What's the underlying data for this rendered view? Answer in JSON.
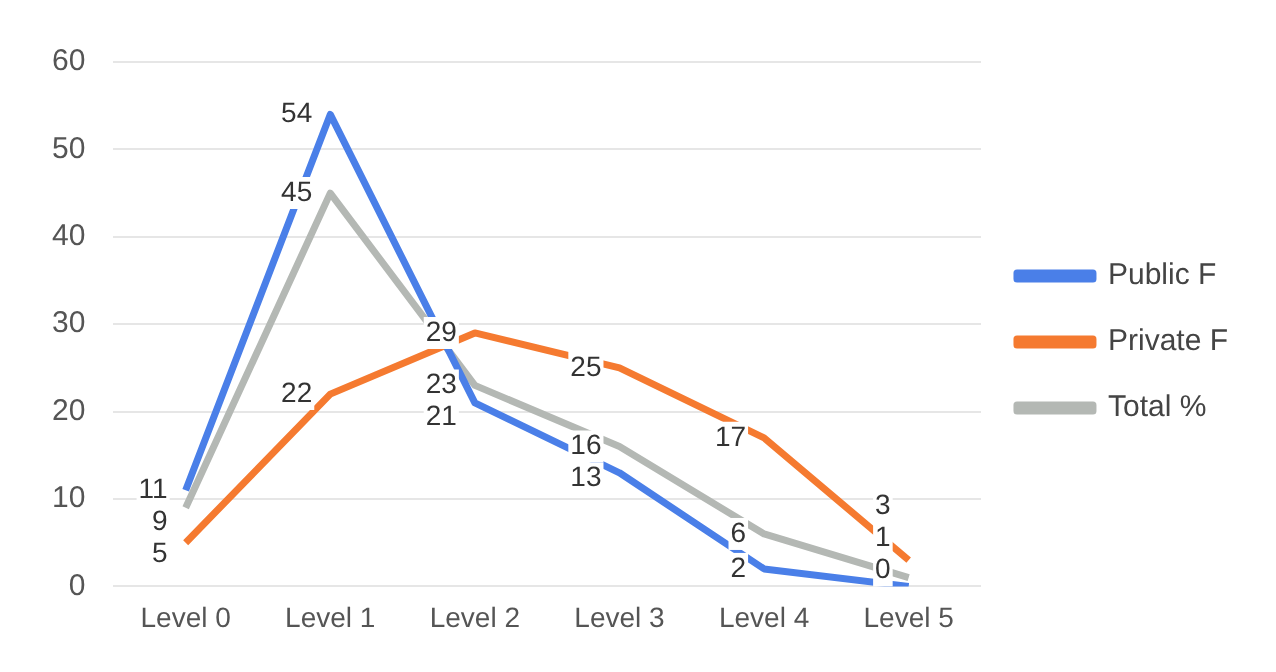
{
  "chart_data": {
    "type": "line",
    "categories": [
      "Level 0",
      "Level 1",
      "Level 2",
      "Level 3",
      "Level 4",
      "Level 5"
    ],
    "series": [
      {
        "name": "Public F",
        "color": "#4a7fe8",
        "values": [
          11,
          54,
          21,
          13,
          2,
          0
        ]
      },
      {
        "name": "Private F",
        "color": "#f57a30",
        "values": [
          5,
          22,
          29,
          25,
          17,
          3
        ]
      },
      {
        "name": "Total %",
        "color": "#b4b8b4",
        "values": [
          9,
          45,
          23,
          16,
          6,
          1
        ]
      }
    ],
    "ylim": [
      0,
      60
    ],
    "yticks": [
      0,
      10,
      20,
      30,
      40,
      50,
      60
    ],
    "grid": "y",
    "legend": "right",
    "data_labels": true,
    "marker": "none",
    "line_style": "solid"
  }
}
